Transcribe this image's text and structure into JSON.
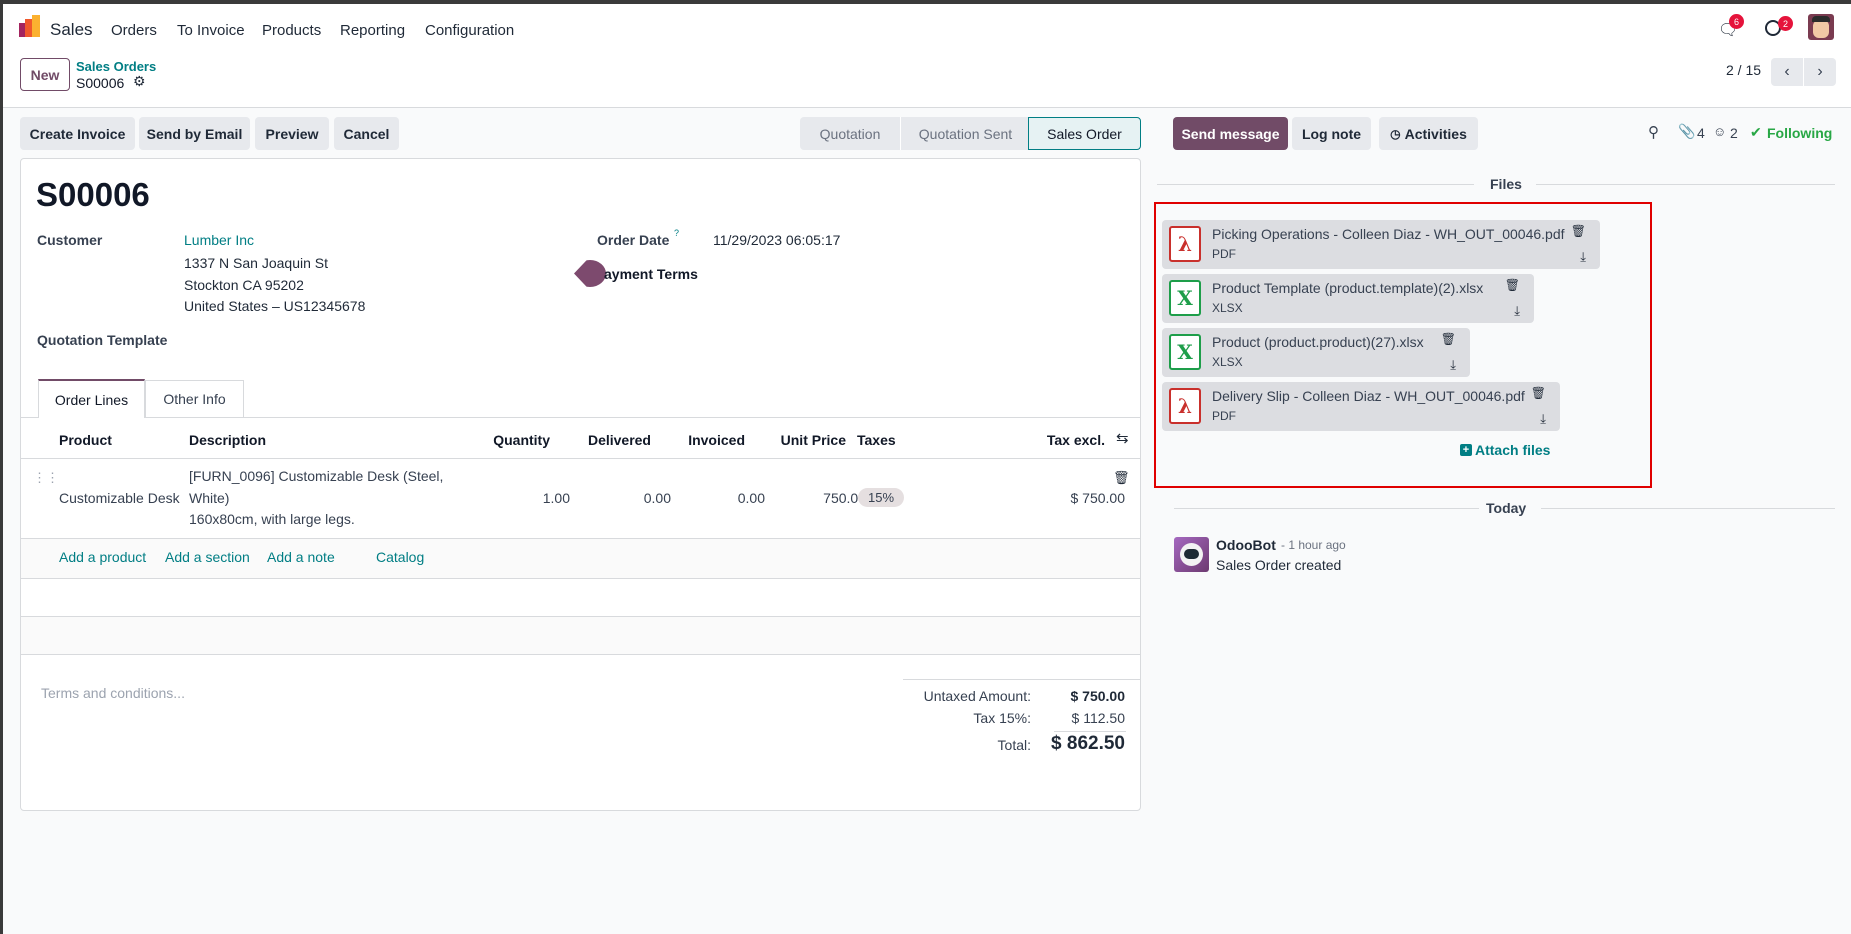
{
  "nav": {
    "app": "Sales",
    "menu": [
      "Orders",
      "To Invoice",
      "Products",
      "Reporting",
      "Configuration"
    ],
    "messages_count": "6",
    "activities_count": "2"
  },
  "control": {
    "new_label": "New",
    "breadcrumb_parent": "Sales Orders",
    "breadcrumb_current": "S00006",
    "pager": "2 / 15"
  },
  "actions": [
    "Create Invoice",
    "Send by Email",
    "Preview",
    "Cancel"
  ],
  "statusbar": {
    "stages": [
      "Quotation",
      "Quotation Sent",
      "Sales Order"
    ],
    "current": "Sales Order"
  },
  "form": {
    "title": "S00006",
    "customer_label": "Customer",
    "customer": "Lumber Inc",
    "address": [
      "1337 N San Joaquin St",
      "Stockton CA 95202",
      "United States – US12345678"
    ],
    "order_date_label": "Order Date",
    "order_date_help": "?",
    "order_date": "11/29/2023 06:05:17",
    "payment_terms_label": "ayment Terms",
    "template_label": "Quotation Template",
    "tabs": [
      "Order Lines",
      "Other Info"
    ],
    "columns": [
      "Product",
      "Description",
      "Quantity",
      "Delivered",
      "Invoiced",
      "Unit Price",
      "Taxes",
      "Tax excl."
    ],
    "lines": [
      {
        "product": "Customizable Desk",
        "description": [
          "[FURN_0096] Customizable Desk (Steel,",
          "White)",
          "160x80cm, with large legs."
        ],
        "quantity": "1.00",
        "delivered": "0.00",
        "invoiced": "0.00",
        "unit_price": "750.00",
        "taxes": "15%",
        "subtotal": "$ 750.00"
      }
    ],
    "add_links": [
      "Add a product",
      "Add a section",
      "Add a note",
      "Catalog"
    ],
    "terms_placeholder": "Terms and conditions...",
    "totals": {
      "untaxed_label": "Untaxed Amount:",
      "untaxed": "$ 750.00",
      "tax_label": "Tax 15%:",
      "tax": "$ 112.50",
      "total_label": "Total:",
      "total": "$ 862.50"
    }
  },
  "chatter": {
    "send_message": "Send message",
    "log_note": "Log note",
    "activities": "Activities",
    "attachments_count": "4",
    "followers_count": "2",
    "following": "Following",
    "files_label": "Files",
    "files": [
      {
        "name": "Picking Operations - Colleen Diaz - WH_OUT_00046.pdf",
        "type": "PDF",
        "icon": "pdf-icon"
      },
      {
        "name": "Product Template (product.template)(2).xlsx",
        "type": "XLSX",
        "icon": "xlsx-icon"
      },
      {
        "name": "Product (product.product)(27).xlsx",
        "type": "XLSX",
        "icon": "xlsx-icon"
      },
      {
        "name": "Delivery Slip - Colleen Diaz - WH_OUT_00046.pdf",
        "type": "PDF",
        "icon": "pdf-icon"
      }
    ],
    "attach_files": "Attach files",
    "today_label": "Today",
    "message": {
      "author": "OdooBot",
      "time": "- 1 hour ago",
      "body": "Sales Order created"
    }
  },
  "colors": {
    "brand": "#714b67",
    "teal": "#017e84",
    "highlight_box": "#e00000",
    "following": "#28a745"
  }
}
